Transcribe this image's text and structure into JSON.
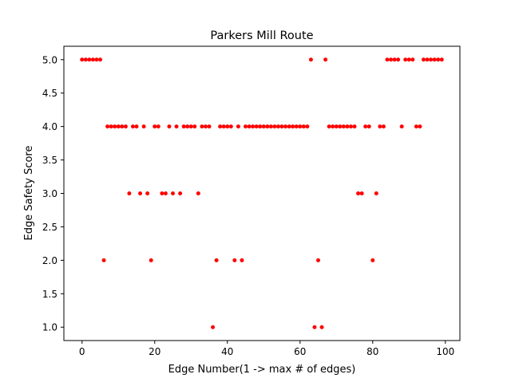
{
  "chart_data": {
    "type": "scatter",
    "title": "Parkers Mill Route",
    "xlabel": "Edge Number(1 -> max # of edges)",
    "ylabel": "Edge Safety Score",
    "xlim": [
      -5,
      104
    ],
    "ylim": [
      0.8,
      5.2
    ],
    "xticks": [
      0,
      20,
      40,
      60,
      80,
      100
    ],
    "yticks": [
      1.0,
      1.5,
      2.0,
      2.5,
      3.0,
      3.5,
      4.0,
      4.5,
      5.0
    ],
    "xtick_labels": [
      "0",
      "20",
      "40",
      "60",
      "80",
      "100"
    ],
    "ytick_labels": [
      "1.0",
      "1.5",
      "2.0",
      "2.5",
      "3.0",
      "3.5",
      "4.0",
      "4.5",
      "5.0"
    ],
    "grid": false,
    "legend": false,
    "series": [
      {
        "color": "#ff0000",
        "marker": "circle",
        "points": [
          [
            0,
            5
          ],
          [
            1,
            5
          ],
          [
            2,
            5
          ],
          [
            3,
            5
          ],
          [
            4,
            5
          ],
          [
            5,
            5
          ],
          [
            6,
            2
          ],
          [
            7,
            4
          ],
          [
            8,
            4
          ],
          [
            9,
            4
          ],
          [
            10,
            4
          ],
          [
            11,
            4
          ],
          [
            12,
            4
          ],
          [
            13,
            3
          ],
          [
            14,
            4
          ],
          [
            15,
            4
          ],
          [
            16,
            3
          ],
          [
            17,
            4
          ],
          [
            18,
            3
          ],
          [
            19,
            2
          ],
          [
            20,
            4
          ],
          [
            21,
            4
          ],
          [
            22,
            3
          ],
          [
            23,
            3
          ],
          [
            24,
            4
          ],
          [
            25,
            3
          ],
          [
            26,
            4
          ],
          [
            27,
            3
          ],
          [
            28,
            4
          ],
          [
            29,
            4
          ],
          [
            30,
            4
          ],
          [
            31,
            4
          ],
          [
            32,
            3
          ],
          [
            33,
            4
          ],
          [
            34,
            4
          ],
          [
            35,
            4
          ],
          [
            36,
            1
          ],
          [
            37,
            2
          ],
          [
            38,
            4
          ],
          [
            39,
            4
          ],
          [
            40,
            4
          ],
          [
            41,
            4
          ],
          [
            42,
            2
          ],
          [
            43,
            4
          ],
          [
            44,
            2
          ],
          [
            45,
            4
          ],
          [
            46,
            4
          ],
          [
            47,
            4
          ],
          [
            48,
            4
          ],
          [
            49,
            4
          ],
          [
            50,
            4
          ],
          [
            51,
            4
          ],
          [
            52,
            4
          ],
          [
            53,
            4
          ],
          [
            54,
            4
          ],
          [
            55,
            4
          ],
          [
            56,
            4
          ],
          [
            57,
            4
          ],
          [
            58,
            4
          ],
          [
            59,
            4
          ],
          [
            60,
            4
          ],
          [
            61,
            4
          ],
          [
            62,
            4
          ],
          [
            63,
            5
          ],
          [
            64,
            1
          ],
          [
            65,
            2
          ],
          [
            66,
            1
          ],
          [
            67,
            5
          ],
          [
            68,
            4
          ],
          [
            69,
            4
          ],
          [
            70,
            4
          ],
          [
            71,
            4
          ],
          [
            72,
            4
          ],
          [
            73,
            4
          ],
          [
            74,
            4
          ],
          [
            75,
            4
          ],
          [
            76,
            3
          ],
          [
            77,
            3
          ],
          [
            78,
            4
          ],
          [
            79,
            4
          ],
          [
            80,
            2
          ],
          [
            81,
            3
          ],
          [
            82,
            4
          ],
          [
            83,
            4
          ],
          [
            84,
            5
          ],
          [
            85,
            5
          ],
          [
            86,
            5
          ],
          [
            87,
            5
          ],
          [
            88,
            4
          ],
          [
            89,
            5
          ],
          [
            90,
            5
          ],
          [
            91,
            5
          ],
          [
            92,
            4
          ],
          [
            93,
            4
          ],
          [
            94,
            5
          ],
          [
            95,
            5
          ],
          [
            96,
            5
          ],
          [
            97,
            5
          ],
          [
            98,
            5
          ],
          [
            99,
            5
          ]
        ]
      }
    ]
  }
}
